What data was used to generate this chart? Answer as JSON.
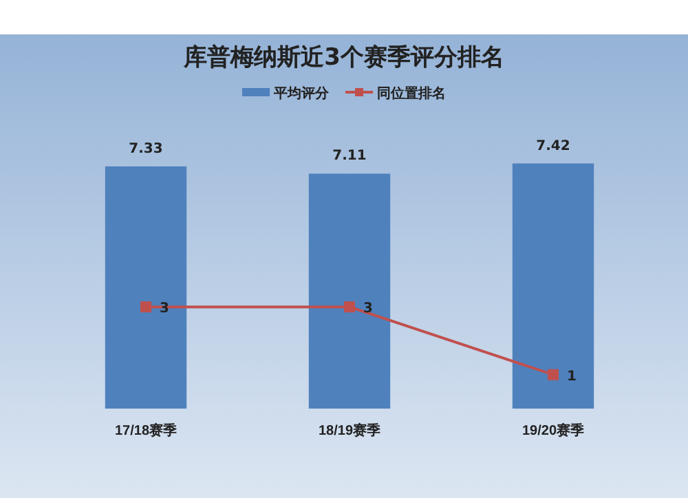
{
  "chart_data": {
    "type": "bar",
    "title": "库普梅纳斯近3个赛季评分排名",
    "categories": [
      "17/18赛季",
      "18/19赛季",
      "19/20赛季"
    ],
    "series": [
      {
        "name": "平均评分",
        "color": "#4f81bd",
        "values": [
          7.33,
          7.11,
          7.42
        ]
      },
      {
        "name": "同位置排名",
        "type": "line",
        "axis": "y2",
        "color": "#c0504d",
        "values": [
          3,
          3,
          1
        ]
      }
    ],
    "tick_labels": "x",
    "data_labels": true,
    "legend": "top",
    "marker": "square",
    "grid": false
  }
}
